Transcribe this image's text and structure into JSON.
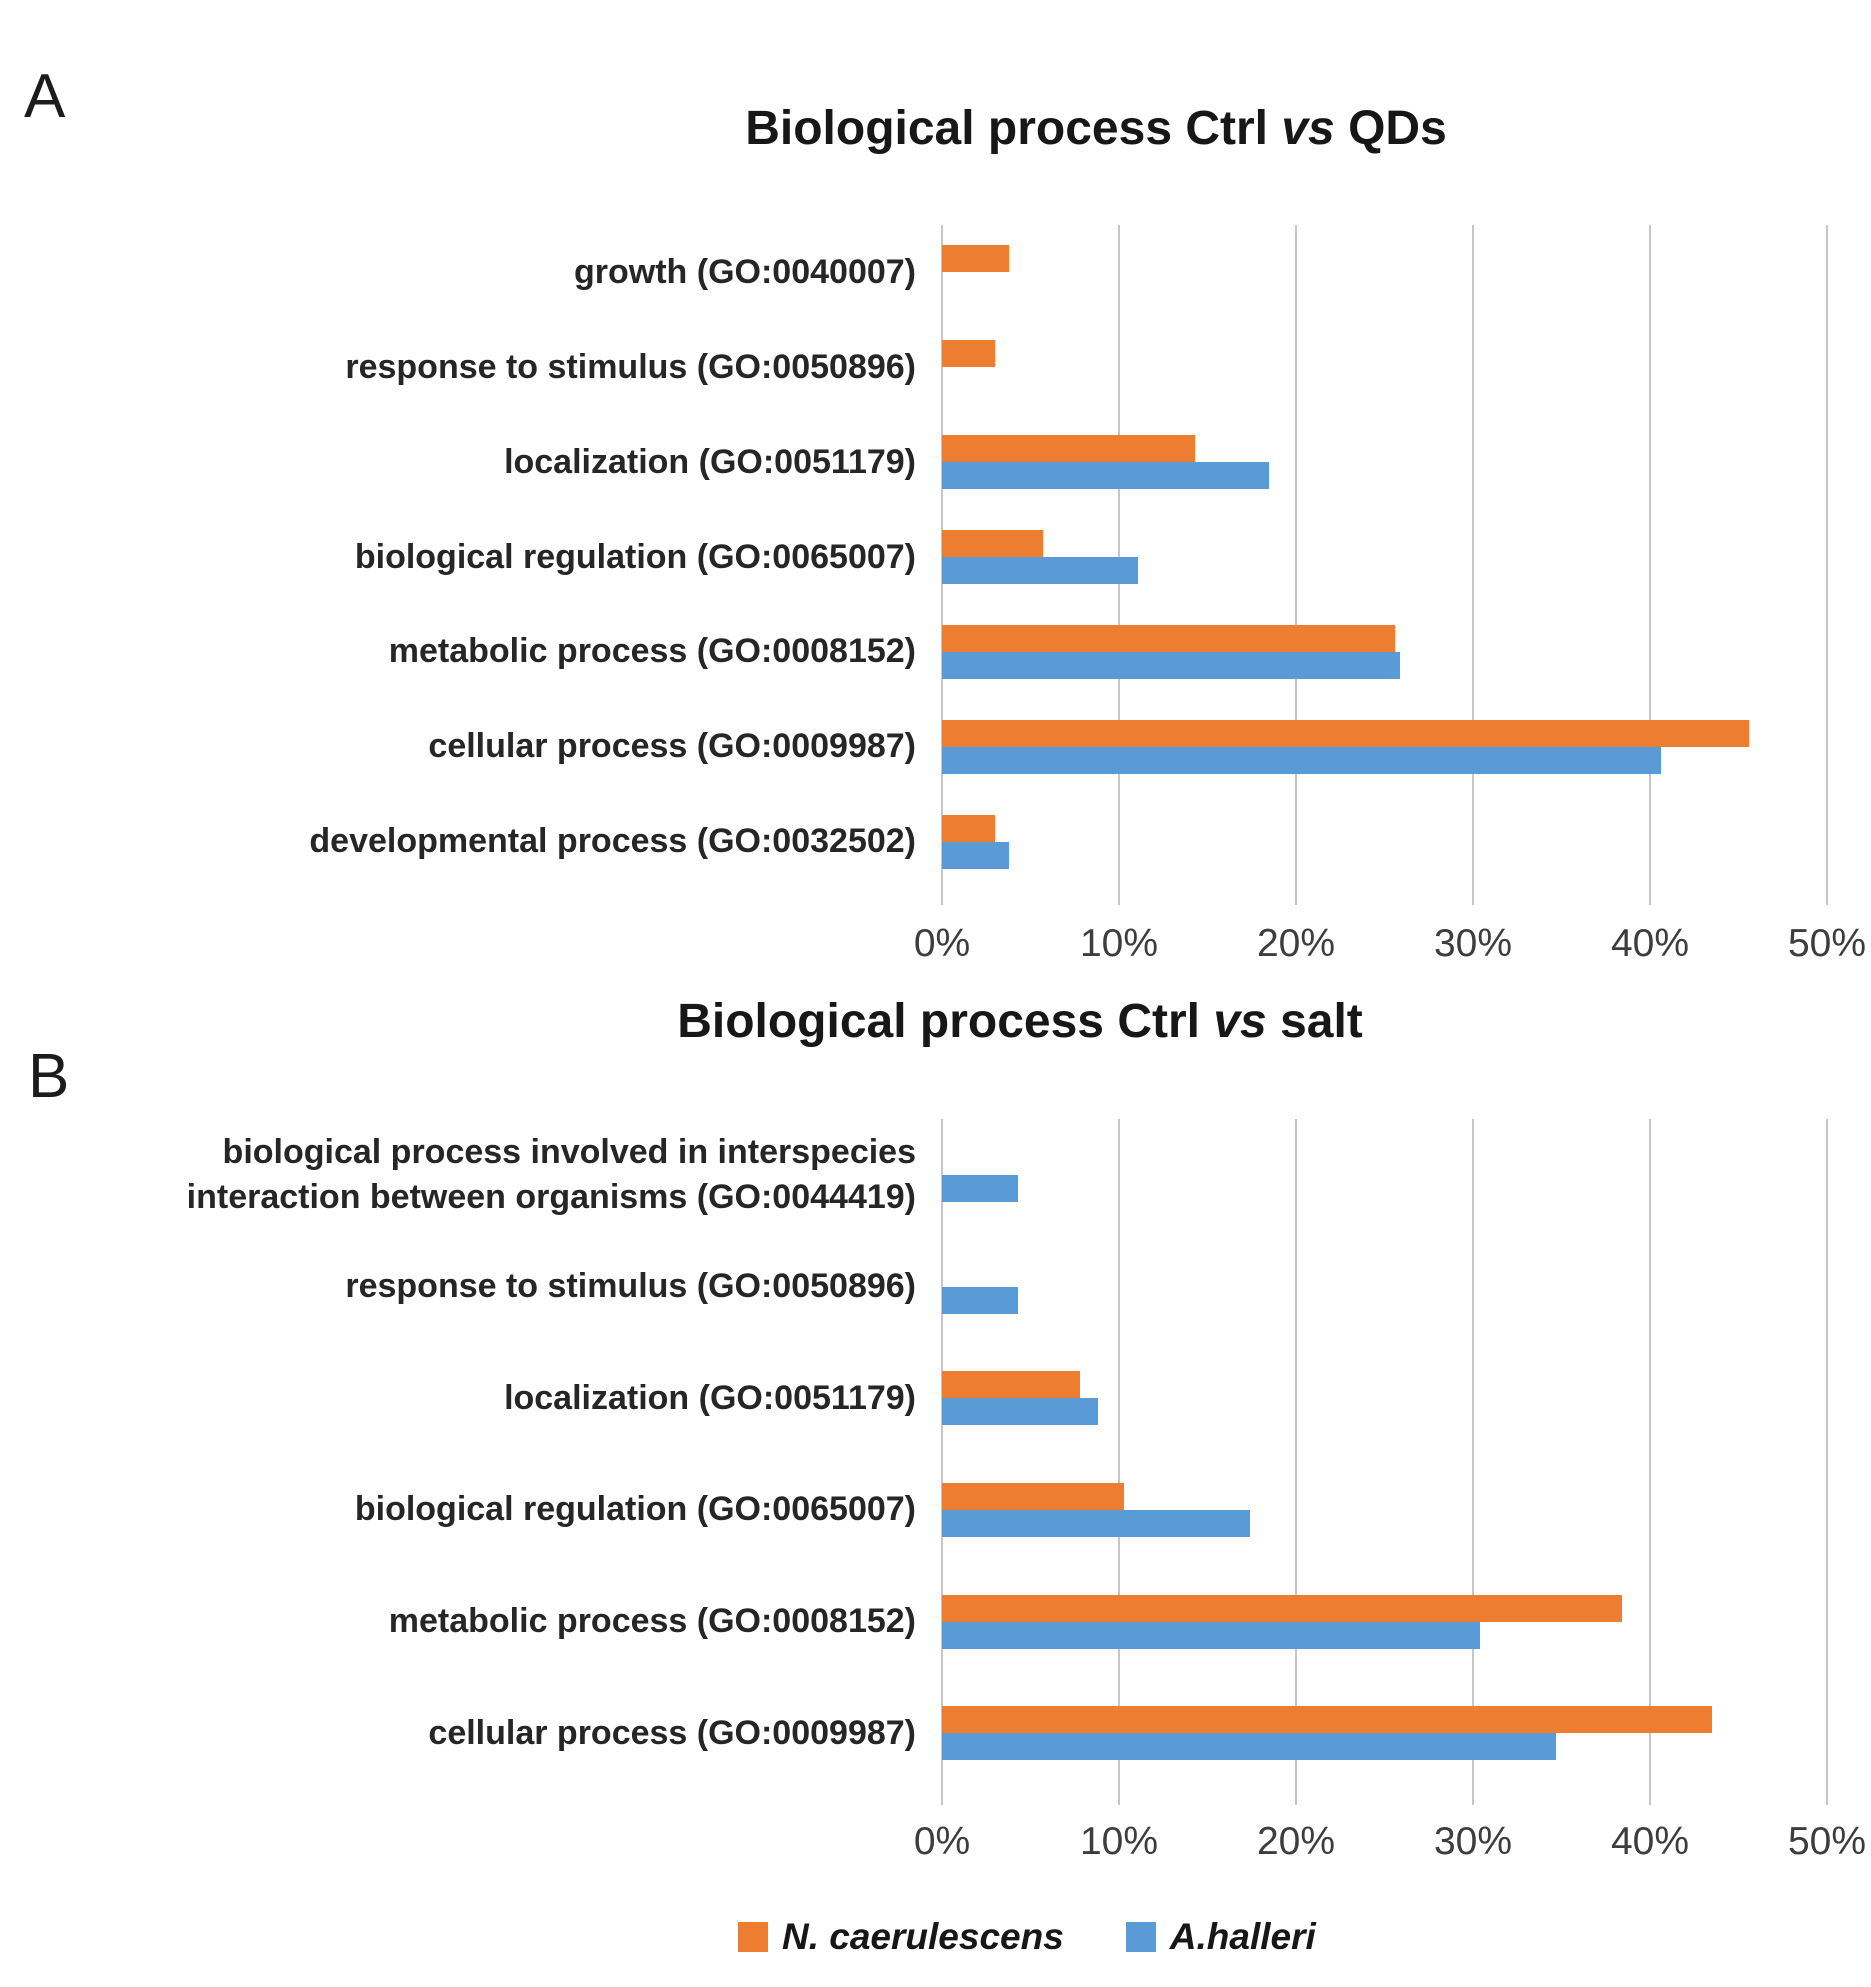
{
  "figure": {
    "panel_a_letter": "A",
    "panel_b_letter": "B",
    "legend": {
      "items": [
        {
          "name": "n-caerulescens",
          "label": "N. caerulescens",
          "color": "#ED7D31"
        },
        {
          "name": "a-halleri",
          "label": "A.halleri",
          "color": "#5B9BD5"
        }
      ]
    }
  },
  "chart_data": [
    {
      "type": "bar",
      "orientation": "horizontal",
      "title_parts": [
        "Biological process Ctrl",
        "vs",
        "QDs"
      ],
      "title_text": "Biological process Ctrl vs QDs",
      "categories": [
        [
          "growth (GO:0040007)"
        ],
        [
          "response to stimulus (GO:0050896)"
        ],
        [
          "localization (GO:0051179)"
        ],
        [
          "biological regulation (GO:0065007)"
        ],
        [
          "metabolic process (GO:0008152)"
        ],
        [
          "cellular process (GO:0009987)"
        ],
        [
          "developmental process (GO:0032502)"
        ]
      ],
      "series": [
        {
          "name": "N. caerulescens",
          "color": "#ED7D31",
          "values": [
            3.8,
            3.0,
            14.3,
            5.7,
            25.6,
            45.6,
            3.0
          ]
        },
        {
          "name": "A.halleri",
          "color": "#5B9BD5",
          "values": [
            null,
            null,
            18.5,
            11.1,
            25.9,
            40.6,
            3.8
          ]
        }
      ],
      "xticks": [
        "0%",
        "10%",
        "20%",
        "30%",
        "40%",
        "50%"
      ],
      "xlim": [
        0,
        50
      ],
      "grid": true,
      "legend_position": "shared-bottom"
    },
    {
      "type": "bar",
      "orientation": "horizontal",
      "title_parts": [
        "Biological process Ctrl",
        "vs",
        "salt"
      ],
      "title_text": "Biological process Ctrl vs salt",
      "categories": [
        [
          "biological process involved in interspecies",
          "interaction between organisms (GO:0044419)"
        ],
        [
          "response to stimulus (GO:0050896)"
        ],
        [
          "localization (GO:0051179)"
        ],
        [
          "biological regulation (GO:0065007)"
        ],
        [
          "metabolic process (GO:0008152)"
        ],
        [
          "cellular process (GO:0009987)"
        ]
      ],
      "series": [
        {
          "name": "N. caerulescens",
          "color": "#ED7D31",
          "values": [
            null,
            null,
            7.8,
            10.3,
            38.4,
            43.5
          ]
        },
        {
          "name": "A.halleri",
          "color": "#5B9BD5",
          "values": [
            4.3,
            4.3,
            8.8,
            17.4,
            30.4,
            34.7
          ]
        }
      ],
      "xticks": [
        "0%",
        "10%",
        "20%",
        "30%",
        "40%",
        "50%"
      ],
      "xlim": [
        0,
        50
      ],
      "grid": true,
      "legend_position": "shared-bottom"
    }
  ]
}
